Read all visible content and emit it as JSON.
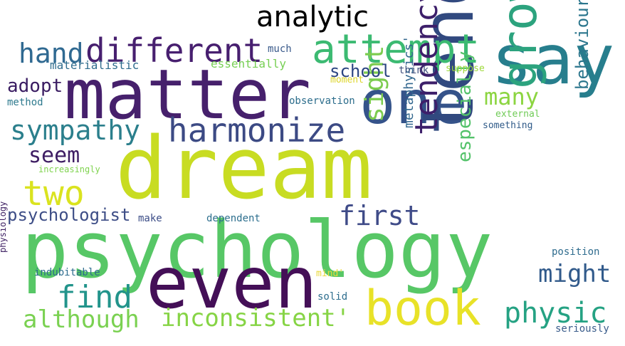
{
  "title": "analytic",
  "words": [
    {
      "id": "dream",
      "text": "dream",
      "color": "#c8dc22"
    },
    {
      "id": "psychology",
      "text": "psychology",
      "color": "#57c766"
    },
    {
      "id": "matter",
      "text": "matter",
      "color": "#46206c"
    },
    {
      "id": "even",
      "text": "even",
      "color": "#440f57"
    },
    {
      "id": "tend",
      "text": "tend",
      "color": "#31497f"
    },
    {
      "id": "say",
      "text": "say",
      "color": "#277e8d"
    },
    {
      "id": "one",
      "text": "one",
      "color": "#35538a"
    },
    {
      "id": "book",
      "text": "book",
      "color": "#e8e228"
    },
    {
      "id": "grown",
      "text": "grown",
      "color": "#2ca37e"
    },
    {
      "id": "attempt",
      "text": "attempt",
      "color": "#3cba72"
    },
    {
      "id": "different",
      "text": "different",
      "color": "#471f6f"
    },
    {
      "id": "harmonize",
      "text": "harmonize",
      "color": "#3c4a84"
    },
    {
      "id": "hand",
      "text": "hand",
      "color": "#2f6991"
    },
    {
      "id": "sympathy",
      "text": "sympathy",
      "color": "#2b7f8c"
    },
    {
      "id": "two",
      "text": "two",
      "color": "#dae31f"
    },
    {
      "id": "seem",
      "text": "seem",
      "color": "#3e1d63"
    },
    {
      "id": "find",
      "text": "find",
      "color": "#22948b"
    },
    {
      "id": "although",
      "text": "although",
      "color": "#7ad151"
    },
    {
      "id": "inconsistent",
      "text": "inconsistent'",
      "color": "#86d445"
    },
    {
      "id": "first",
      "text": "first",
      "color": "#3f4b88"
    },
    {
      "id": "physic",
      "text": "physic",
      "color": "#25a283"
    },
    {
      "id": "might",
      "text": "might",
      "color": "#315a8b"
    },
    {
      "id": "tendency",
      "text": "tendency",
      "color": "#3d1f6a"
    },
    {
      "id": "sight",
      "text": "sight",
      "color": "#7ccc4f"
    },
    {
      "id": "many",
      "text": "many",
      "color": "#8cd541"
    },
    {
      "id": "school",
      "text": "school",
      "color": "#2c4582"
    },
    {
      "id": "psychologist",
      "text": "psychologist",
      "color": "#3d4d86"
    },
    {
      "id": "adopt",
      "text": "adopt",
      "color": "#3a1c62"
    },
    {
      "id": "especially",
      "text": "especially",
      "color": "#53c26a"
    },
    {
      "id": "behaviourist",
      "text": "behaviourist",
      "color": "#2b768d"
    },
    {
      "id": "metaphysics",
      "text": "metaphysics'",
      "color": "#31668e"
    },
    {
      "id": "materialistic",
      "text": "materialistic",
      "color": "#2f6d8e"
    },
    {
      "id": "essentially",
      "text": "essentially",
      "color": "#76cf53"
    },
    {
      "id": "much",
      "text": "much",
      "color": "#3a5a8b"
    },
    {
      "id": "think",
      "text": "think",
      "color": "#43527f"
    },
    {
      "id": "suppose",
      "text": "suppose",
      "color": "#9ed93a"
    },
    {
      "id": "moment",
      "text": "moment",
      "color": "#ddd52a"
    },
    {
      "id": "method",
      "text": "method",
      "color": "#2e7a8e"
    },
    {
      "id": "observation",
      "text": "observation",
      "color": "#2c6d8c"
    },
    {
      "id": "external",
      "text": "external",
      "color": "#6fcb56"
    },
    {
      "id": "something",
      "text": "something",
      "color": "#2f5a88"
    },
    {
      "id": "increasingly",
      "text": "increasingly",
      "color": "#7fd34e"
    },
    {
      "id": "make",
      "text": "make",
      "color": "#3b4c86"
    },
    {
      "id": "dependent",
      "text": "dependent",
      "color": "#2d6f8e"
    },
    {
      "id": "position",
      "text": "position",
      "color": "#2f6c8e"
    },
    {
      "id": "physiology",
      "text": "physiology",
      "color": "#3e2063"
    },
    {
      "id": "indubitable",
      "text": "indubitable",
      "color": "#2d6c8e"
    },
    {
      "id": "mind",
      "text": "mind'",
      "color": "#e8d83a"
    },
    {
      "id": "solid",
      "text": "solid",
      "color": "#2e6e8e"
    },
    {
      "id": "seriously",
      "text": "seriously",
      "color": "#3a5c8b"
    }
  ]
}
